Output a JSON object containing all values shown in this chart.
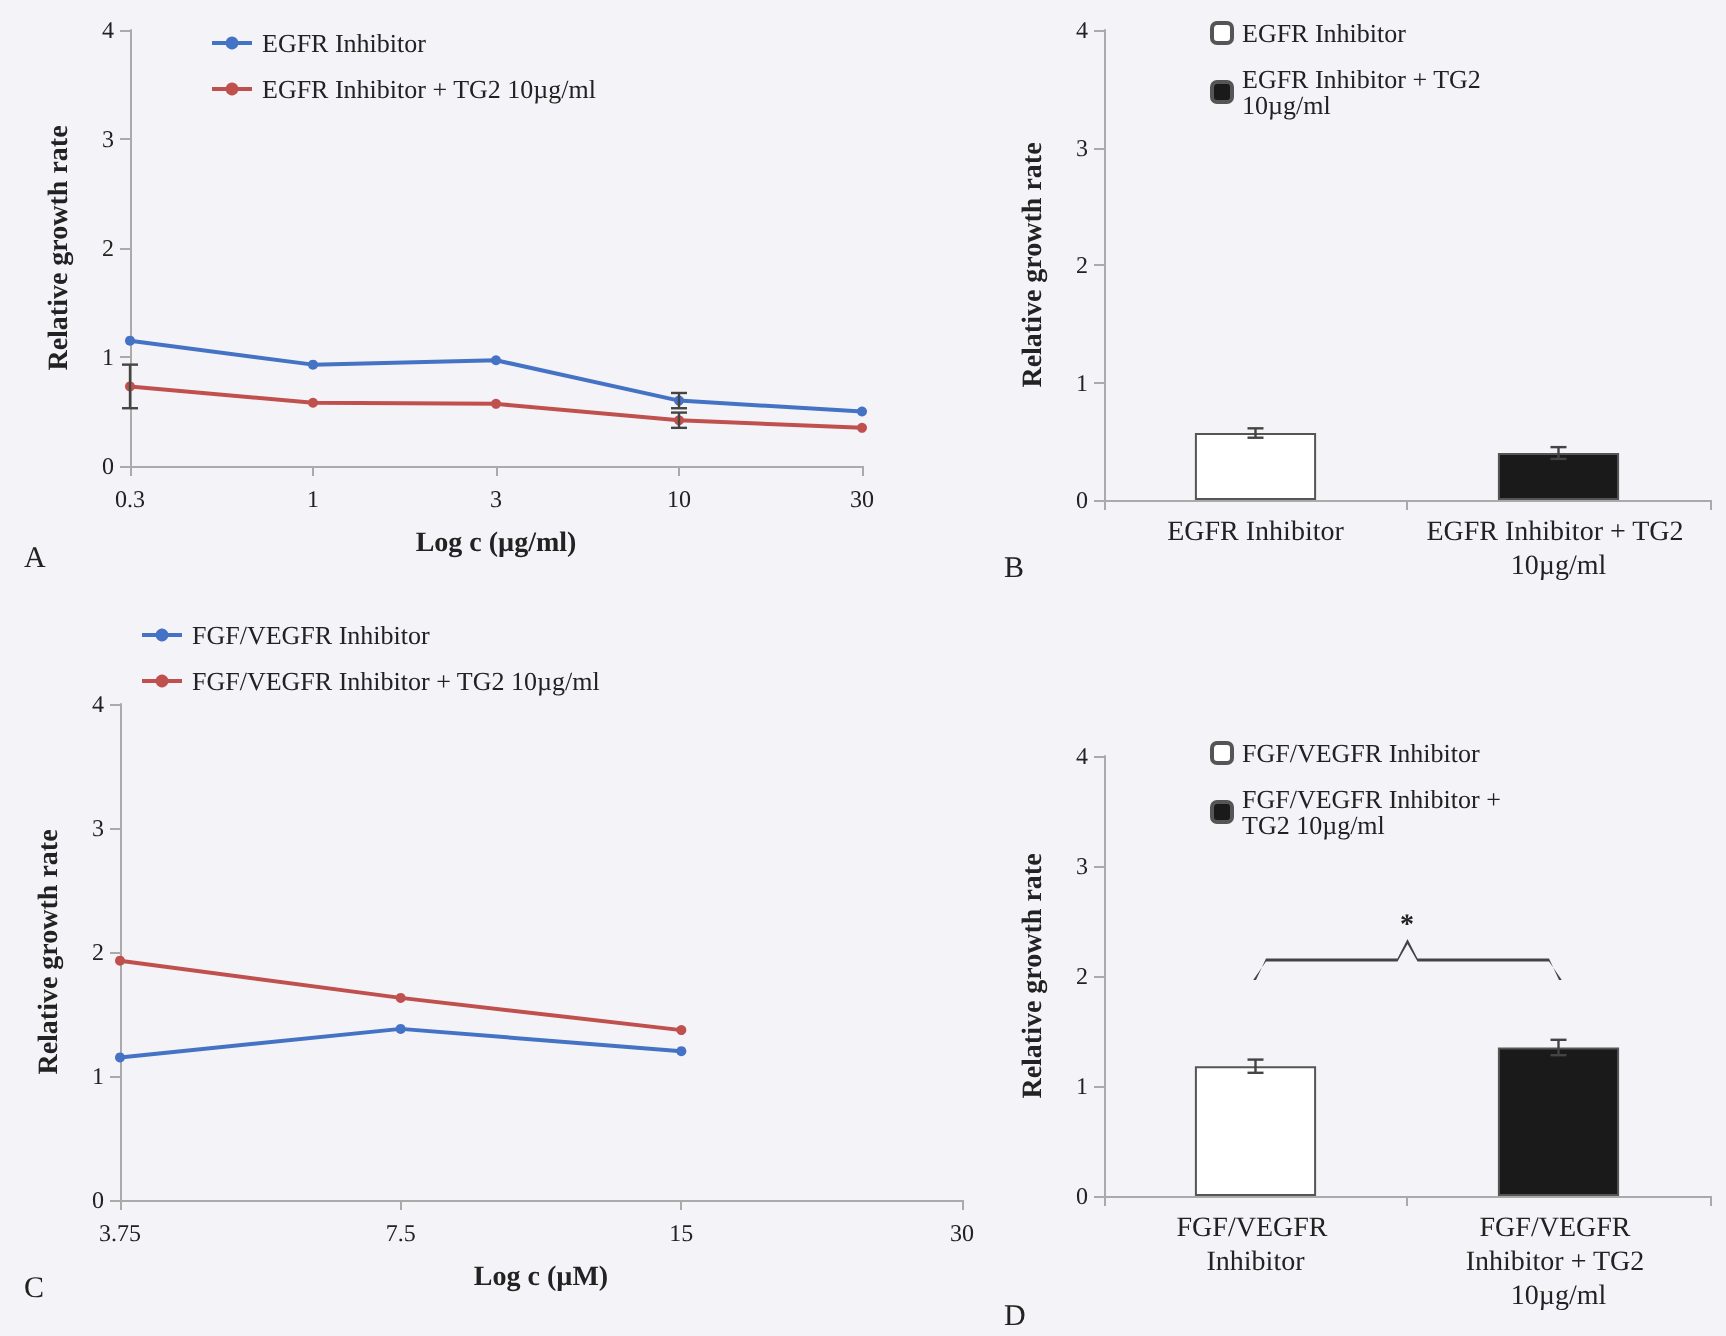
{
  "chart_data": [
    {
      "type": "line",
      "xlabel": "Log c (µg/ml)",
      "ylabel": "Relative growth rate",
      "categories": [
        "0.3",
        "1",
        "3",
        "10",
        "30"
      ],
      "ylim": [
        0,
        4
      ],
      "yticks": [
        0,
        1,
        2,
        3,
        4
      ],
      "legend": "top left",
      "marker": "circle",
      "annotations": [
        "A"
      ],
      "series": [
        {
          "name": "EGFR Inhibitor",
          "color": "#4472c4",
          "values": [
            1.15,
            0.93,
            0.97,
            0.6,
            0.5
          ],
          "errors": [
            null,
            null,
            null,
            0.07,
            null
          ]
        },
        {
          "name": "EGFR Inhibitor + TG2 10µg/ml",
          "color": "#c0504d",
          "values": [
            0.73,
            0.58,
            0.57,
            0.42,
            0.35
          ],
          "errors": [
            0.2,
            null,
            null,
            0.07,
            null
          ]
        }
      ]
    },
    {
      "type": "bar",
      "ylabel": "Relative growth rate",
      "categories": [
        "EGFR Inhibitor",
        "EGFR Inhibitor + TG2 10µg/ml"
      ],
      "ylim": [
        0,
        4
      ],
      "yticks": [
        0,
        1,
        2,
        3,
        4
      ],
      "legend": "top",
      "annotations": [
        "B"
      ],
      "series": [
        {
          "name": "EGFR Inhibitor",
          "color": "#ffffff",
          "values": [
            0.57,
            null
          ],
          "errors": [
            0.04,
            null
          ]
        },
        {
          "name": "EGFR Inhibitor + TG2 10µg/ml",
          "color": "#1a1a1a",
          "values": [
            null,
            0.4
          ],
          "errors": [
            null,
            0.05
          ]
        }
      ]
    },
    {
      "type": "line",
      "xlabel": "Log c (µM)",
      "ylabel": "Relative growth rate",
      "categories": [
        "3.75",
        "7.5",
        "15",
        "30"
      ],
      "ylim": [
        0,
        4
      ],
      "yticks": [
        0,
        1,
        2,
        3,
        4
      ],
      "legend": "top left",
      "marker": "circle",
      "annotations": [
        "C"
      ],
      "series": [
        {
          "name": "FGF/VEGFR Inhibitor",
          "color": "#4472c4",
          "values": [
            1.15,
            1.38,
            1.2,
            null
          ]
        },
        {
          "name": "FGF/VEGFR Inhibitor + TG2 10µg/ml",
          "color": "#c0504d",
          "values": [
            1.93,
            1.63,
            1.37,
            null
          ]
        }
      ]
    },
    {
      "type": "bar",
      "ylabel": "Relative growth rate",
      "categories": [
        "FGF/VEGFR Inhibitor",
        "FGF/VEGFR Inhibitor + TG2 10µg/ml"
      ],
      "ylim": [
        0,
        4
      ],
      "yticks": [
        0,
        1,
        2,
        3,
        4
      ],
      "legend": "top",
      "annotations": [
        "*",
        "D"
      ],
      "series": [
        {
          "name": "FGF/VEGFR Inhibitor",
          "color": "#ffffff",
          "values": [
            1.18,
            null
          ],
          "errors": [
            0.06,
            null
          ]
        },
        {
          "name": "FGF/VEGFR Inhibitor + TG2 10µg/ml",
          "color": "#1a1a1a",
          "values": [
            null,
            1.35
          ],
          "errors": [
            null,
            0.07
          ]
        }
      ]
    }
  ]
}
